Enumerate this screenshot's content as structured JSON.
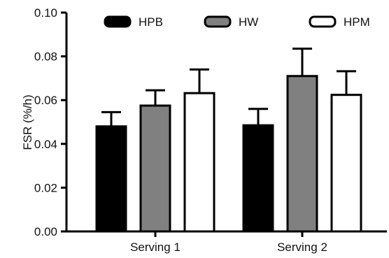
{
  "chart_data": {
    "type": "bar",
    "categories": [
      "Serving 1",
      "Serving 2"
    ],
    "series": [
      {
        "name": "HPB",
        "values": [
          0.048,
          0.0485
        ],
        "errors": [
          0.0065,
          0.0075
        ],
        "color": "#000000"
      },
      {
        "name": "HW",
        "values": [
          0.0575,
          0.071
        ],
        "errors": [
          0.007,
          0.0125
        ],
        "color": "#808080"
      },
      {
        "name": "HPM",
        "values": [
          0.0632,
          0.0624
        ],
        "errors": [
          0.0108,
          0.0108
        ],
        "color": "#ffffff"
      }
    ],
    "ylabel": "FSR (%/h)",
    "ylim": [
      0,
      0.1
    ],
    "yticks": [
      "0.00",
      "0.02",
      "0.04",
      "0.06",
      "0.08",
      "0.10"
    ],
    "error_bars": "upper",
    "legend_position": "top",
    "grid": false
  }
}
